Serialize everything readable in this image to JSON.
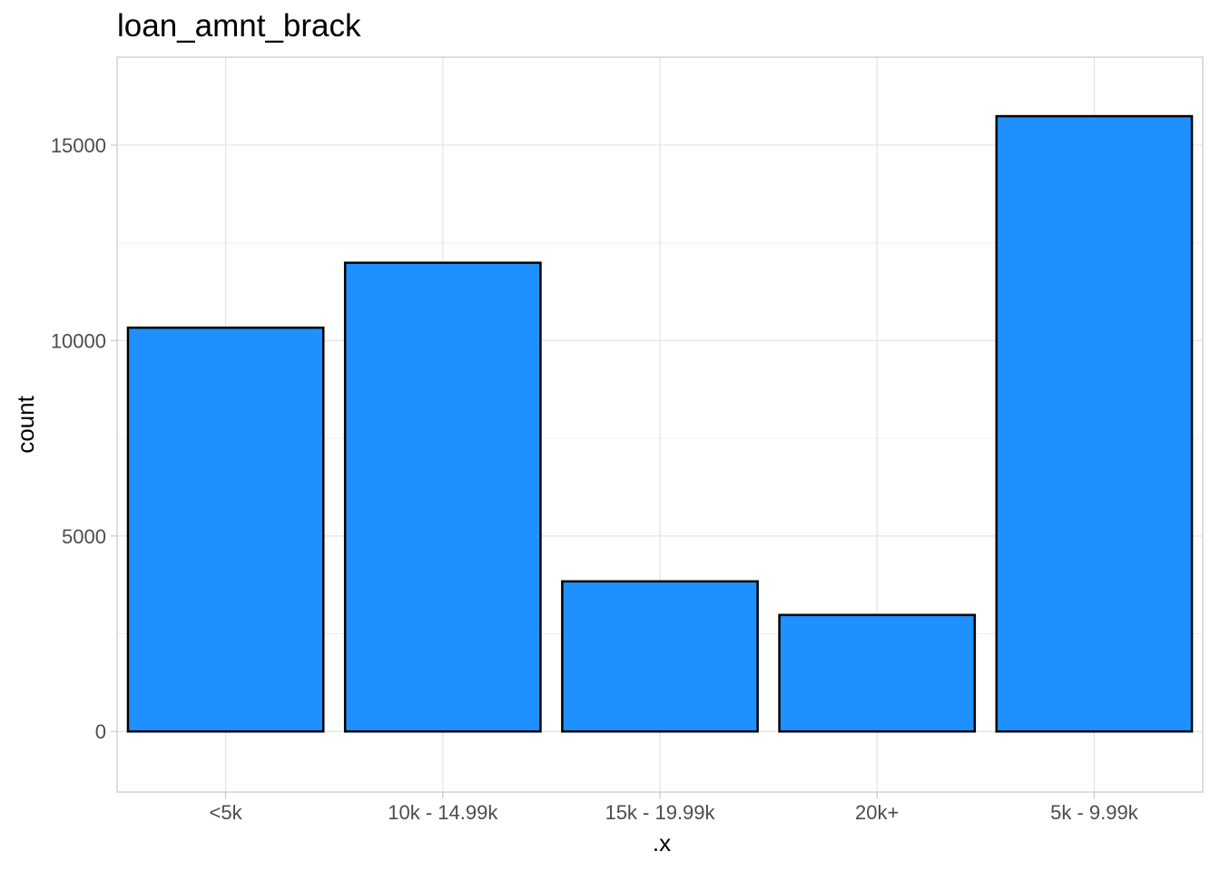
{
  "chart_data": {
    "type": "bar",
    "title": "loan_amnt_brack",
    "xlabel": ".x",
    "ylabel": "count",
    "categories": [
      "<5k",
      "10k - 14.99k",
      "15k - 19.99k",
      "20k+",
      "5k - 9.99k"
    ],
    "values": [
      10330,
      11990,
      3840,
      2980,
      15740
    ],
    "ylim": [
      -1550,
      17250
    ],
    "yticks": [
      0,
      5000,
      10000,
      15000
    ],
    "ytick_labels": [
      "0",
      "5000",
      "10000",
      "15000"
    ],
    "grid": true,
    "legend": "none",
    "colors": {
      "bar_fill": "#1e90ff",
      "bar_stroke": "#000000",
      "panel_border": "#c8c8c8",
      "grid_major": "#e3e3e3",
      "grid_minor": "#f0f0f0",
      "tick_text": "#4d4d4d"
    }
  }
}
